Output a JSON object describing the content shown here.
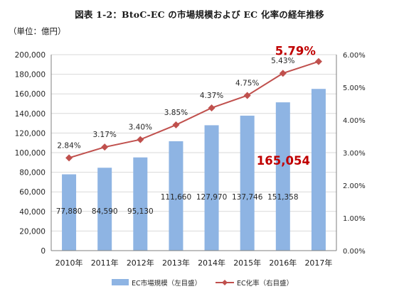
{
  "page": {
    "title": "図表 1-2：BtoC-EC の市場規模および EC 化率の経年推移",
    "unit_label": "（単位：億円）"
  },
  "colors": {
    "bar": "#8EB4E3",
    "line": "#C0504D",
    "highlight": "#C00000",
    "grid": "#D9D9D9",
    "axis": "#7F7F7F"
  },
  "chart_data": {
    "type": "bar+line",
    "categories": [
      "2010年",
      "2011年",
      "2012年",
      "2013年",
      "2014年",
      "2015年",
      "2016年",
      "2017年"
    ],
    "series": [
      {
        "name": "EC市場規模（左目盛）",
        "type": "bar",
        "axis": "left",
        "values": [
          77880,
          84590,
          95130,
          111660,
          127970,
          137746,
          151358,
          165054
        ],
        "labels": [
          "77,880",
          "84,590",
          "95,130",
          "111,660",
          "127,970",
          "137,746",
          "151,358",
          "165,054"
        ]
      },
      {
        "name": "EC化率（右目盛）",
        "type": "line",
        "axis": "right",
        "values": [
          2.84,
          3.17,
          3.4,
          3.85,
          4.37,
          4.75,
          5.43,
          5.79
        ],
        "labels": [
          "2.84%",
          "3.17%",
          "3.40%",
          "3.85%",
          "4.37%",
          "4.75%",
          "5.43%",
          "5.79%"
        ]
      }
    ],
    "left_axis": {
      "range": [
        0,
        200000
      ],
      "ticks": [
        0,
        20000,
        40000,
        60000,
        80000,
        100000,
        120000,
        140000,
        160000,
        180000,
        200000
      ],
      "tick_labels": [
        "0",
        "20,000",
        "40,000",
        "60,000",
        "80,000",
        "100,000",
        "120,000",
        "140,000",
        "160,000",
        "180,000",
        "200,000"
      ]
    },
    "right_axis": {
      "range": [
        0,
        6
      ],
      "ticks": [
        0,
        1,
        2,
        3,
        4,
        5,
        6
      ],
      "tick_labels": [
        "0.00%",
        "1.00%",
        "2.00%",
        "3.00%",
        "4.00%",
        "5.00%",
        "6.00%"
      ]
    },
    "grid": true,
    "legend_position": "bottom",
    "highlighted_labels": [
      "165,054",
      "5.79%"
    ]
  }
}
